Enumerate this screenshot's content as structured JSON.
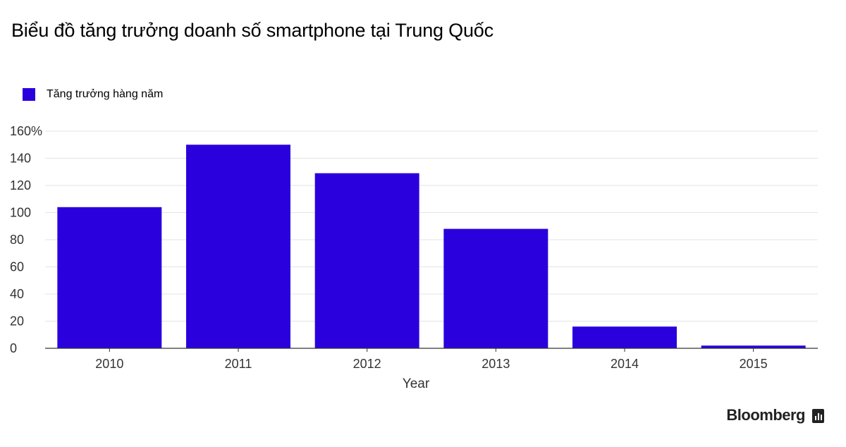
{
  "title": "Biểu đồ tăng trưởng doanh số smartphone tại Trung Quốc",
  "brand": "Bloomberg",
  "brand_icon": "bloomberg-chart-icon",
  "colors": {
    "bar": "#2a00dd",
    "grid": "#e3e3e3",
    "axis": "#333333"
  },
  "chart_data": {
    "type": "bar",
    "title": "Biểu đồ tăng trưởng doanh số smartphone tại Trung Quốc",
    "categories": [
      "2010",
      "2011",
      "2012",
      "2013",
      "2014",
      "2015"
    ],
    "series": [
      {
        "name": "Tăng trưởng hàng năm",
        "values": [
          104,
          150,
          129,
          88,
          16,
          2
        ]
      }
    ],
    "xlabel": "Year",
    "ylabel": "",
    "ylim": [
      0,
      160
    ],
    "yticks": [
      0,
      20,
      40,
      60,
      80,
      100,
      120,
      140,
      160
    ],
    "ytick_labels": [
      "0",
      "20",
      "40",
      "60",
      "80",
      "100",
      "120",
      "140",
      "160%"
    ],
    "grid": true,
    "legend_position": "top-left"
  }
}
